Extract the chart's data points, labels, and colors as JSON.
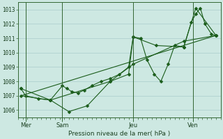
{
  "title": "Pression niveau de la mer( hPa )",
  "ylim": [
    1005.5,
    1013.5
  ],
  "yticks": [
    1006,
    1007,
    1008,
    1009,
    1010,
    1011,
    1012,
    1013
  ],
  "xlim": [
    0,
    22
  ],
  "bg_color": "#cde8e2",
  "grid_color": "#aacccc",
  "line_color": "#1a5c1a",
  "spine_color": "#336633",
  "day_labels": [
    "Mer",
    "Sam",
    "Jeu",
    "Ven"
  ],
  "day_positions": [
    0.8,
    4.8,
    12.5,
    19.0
  ],
  "vline_positions": [
    0.8,
    4.8,
    12.5,
    19.0
  ],
  "series0_x": [
    0.3,
    0.8,
    2.2,
    3.5,
    4.8,
    5.3,
    5.8,
    6.5,
    7.2,
    8.0,
    9.0,
    10.0,
    11.0,
    12.0,
    12.5,
    13.3,
    14.0,
    14.8,
    15.5,
    16.3,
    17.0,
    18.0,
    18.8,
    19.3,
    19.8,
    20.3,
    21.0,
    21.5
  ],
  "series0_y": [
    1007.5,
    1007.0,
    1006.8,
    1006.7,
    1007.7,
    1007.5,
    1007.3,
    1007.2,
    1007.4,
    1007.7,
    1008.0,
    1008.2,
    1008.5,
    1009.0,
    1011.1,
    1011.0,
    1009.5,
    1008.5,
    1008.0,
    1009.2,
    1010.5,
    1010.4,
    1012.1,
    1012.7,
    1013.1,
    1012.0,
    1011.3,
    1011.2
  ],
  "series1_x": [
    0.3,
    3.5,
    5.5,
    7.5,
    10.0,
    12.0,
    12.5,
    15.0,
    18.0,
    19.3,
    21.5
  ],
  "series1_y": [
    1007.5,
    1006.7,
    1005.9,
    1006.3,
    1008.0,
    1008.5,
    1011.1,
    1010.5,
    1010.4,
    1013.1,
    1011.2
  ],
  "series2_x": [
    0.3,
    21.5
  ],
  "series2_y": [
    1007.0,
    1011.2
  ],
  "series3_x": [
    0.3,
    3.5,
    10.0,
    12.5,
    18.0,
    21.5
  ],
  "series3_y": [
    1007.0,
    1006.7,
    1008.0,
    1009.2,
    1010.8,
    1011.2
  ]
}
